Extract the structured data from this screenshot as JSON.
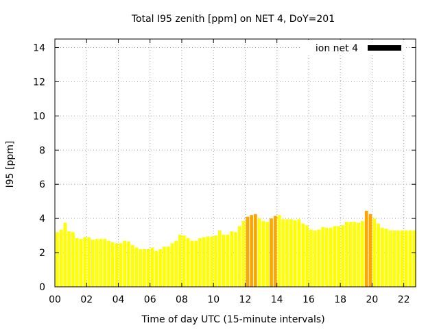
{
  "chart_data": {
    "type": "bar",
    "title": "Total I95 zenith [ppm] on NET 4, DoY=201",
    "xlabel": "Time of day UTC (15-minute intervals)",
    "ylabel": "I95 [ppm]",
    "xlim": [
      0,
      22.75
    ],
    "ylim": [
      0,
      14.5
    ],
    "xticks": [
      0,
      2,
      4,
      6,
      8,
      10,
      12,
      14,
      16,
      18,
      20,
      22
    ],
    "xtick_labels": [
      "00",
      "02",
      "04",
      "06",
      "08",
      "10",
      "12",
      "14",
      "16",
      "18",
      "20",
      "22"
    ],
    "yticks": [
      0,
      2,
      4,
      6,
      8,
      10,
      12,
      14
    ],
    "ytick_labels": [
      "0",
      "2",
      "4",
      "6",
      "8",
      "10",
      "12",
      "14"
    ],
    "grid": true,
    "legend": {
      "position": "top-right",
      "entries": [
        {
          "label": "ion net 4",
          "color": "#000000"
        }
      ]
    },
    "interval_hours": 0.25,
    "colors": {
      "normal": "#ffff00",
      "elevated": "#ffa500"
    },
    "x": [
      0,
      0.25,
      0.5,
      0.75,
      1,
      1.25,
      1.5,
      1.75,
      2,
      2.25,
      2.5,
      2.75,
      3,
      3.25,
      3.5,
      3.75,
      4,
      4.25,
      4.5,
      4.75,
      5,
      5.25,
      5.5,
      5.75,
      6,
      6.25,
      6.5,
      6.75,
      7,
      7.25,
      7.5,
      7.75,
      8,
      8.25,
      8.5,
      8.75,
      9,
      9.25,
      9.5,
      9.75,
      10,
      10.25,
      10.5,
      10.75,
      11,
      11.25,
      11.5,
      11.75,
      12,
      12.25,
      12.5,
      12.75,
      13,
      13.25,
      13.5,
      13.75,
      14,
      14.25,
      14.5,
      14.75,
      15,
      15.25,
      15.5,
      15.75,
      16,
      16.25,
      16.5,
      16.75,
      17,
      17.25,
      17.5,
      17.75,
      18,
      18.25,
      18.5,
      18.75,
      19,
      19.25,
      19.5,
      19.75,
      20,
      20.25,
      20.5,
      20.75,
      21,
      21.25,
      21.5,
      21.75,
      22,
      22.25,
      22.5
    ],
    "values": [
      3.2,
      3.35,
      3.75,
      3.25,
      3.2,
      2.85,
      2.8,
      2.9,
      2.9,
      2.75,
      2.8,
      2.8,
      2.8,
      2.7,
      2.6,
      2.55,
      2.55,
      2.7,
      2.65,
      2.45,
      2.3,
      2.2,
      2.2,
      2.2,
      2.3,
      2.1,
      2.2,
      2.35,
      2.35,
      2.55,
      2.7,
      3.05,
      3.0,
      2.85,
      2.7,
      2.7,
      2.85,
      2.9,
      2.95,
      2.95,
      3.0,
      3.3,
      3.05,
      3.05,
      3.25,
      3.2,
      3.55,
      3.85,
      4.1,
      4.2,
      4.25,
      4.0,
      3.85,
      3.8,
      4.0,
      4.15,
      4.2,
      3.95,
      3.95,
      3.95,
      3.9,
      3.95,
      3.7,
      3.6,
      3.35,
      3.3,
      3.35,
      3.5,
      3.45,
      3.45,
      3.55,
      3.55,
      3.6,
      3.8,
      3.8,
      3.8,
      3.75,
      3.85,
      4.45,
      4.25,
      4.0,
      3.7,
      3.45,
      3.4,
      3.3,
      3.3,
      3.3,
      3.3,
      3.3,
      3.3,
      3.3
    ],
    "elevated_flags": [
      0,
      0,
      0,
      0,
      0,
      0,
      0,
      0,
      0,
      0,
      0,
      0,
      0,
      0,
      0,
      0,
      0,
      0,
      0,
      0,
      0,
      0,
      0,
      0,
      0,
      0,
      0,
      0,
      0,
      0,
      0,
      0,
      0,
      0,
      0,
      0,
      0,
      0,
      0,
      0,
      0,
      0,
      0,
      0,
      0,
      0,
      0,
      0,
      1,
      1,
      1,
      0,
      0,
      0,
      1,
      1,
      0,
      0,
      0,
      0,
      0,
      0,
      0,
      0,
      0,
      0,
      0,
      0,
      0,
      0,
      0,
      0,
      0,
      0,
      0,
      0,
      0,
      0,
      1,
      1,
      0,
      0,
      0,
      0,
      0,
      0,
      0,
      0,
      0,
      0,
      0
    ]
  }
}
